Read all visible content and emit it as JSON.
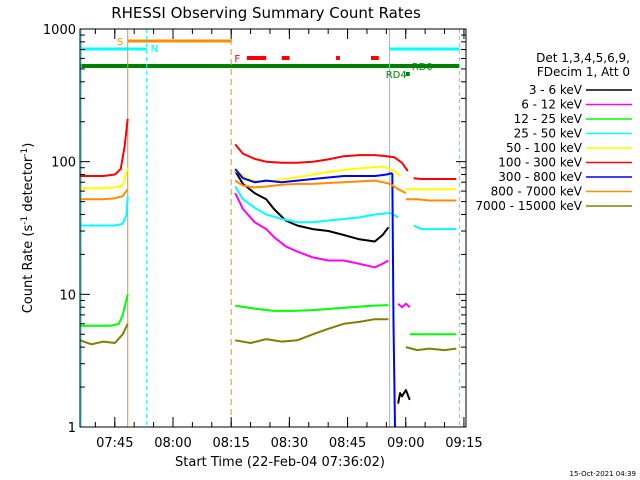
{
  "chart_data": {
    "type": "line",
    "title": "RHESSI Observing Summary Count Rates",
    "xlabel": "Start Time (22-Feb-04 07:36:02)",
    "ylabel_main": "Count Rate (s",
    "ylabel_sup1": "-1",
    "ylabel_mid": " detector",
    "ylabel_sup2": "-1",
    "ylabel_end": ")",
    "yscale": "log",
    "ylim": [
      1,
      1000
    ],
    "xlim_minutes": [
      0,
      99.5
    ],
    "y_ticks": [
      {
        "value": 1,
        "label": "1"
      },
      {
        "value": 10,
        "label": "10"
      },
      {
        "value": 100,
        "label": "100"
      },
      {
        "value": 1000,
        "label": "1000"
      }
    ],
    "x_ticks": [
      {
        "minute": 8.97,
        "label": "07:45"
      },
      {
        "minute": 23.97,
        "label": "08:00"
      },
      {
        "minute": 38.97,
        "label": "08:15"
      },
      {
        "minute": 53.97,
        "label": "08:30"
      },
      {
        "minute": 68.97,
        "label": "08:45"
      },
      {
        "minute": 83.97,
        "label": "09:00"
      },
      {
        "minute": 98.97,
        "label": "09:15"
      }
    ],
    "legend_header": [
      "Det 1,3,4,5,6,9,",
      "FDecim 1, Att 0"
    ],
    "legend": [
      {
        "label": "3 - 6 keV",
        "color": "#000000"
      },
      {
        "label": "6 - 12 keV",
        "color": "#ff00ff"
      },
      {
        "label": "12 - 25 keV",
        "color": "#00ff00"
      },
      {
        "label": "25 - 50 keV",
        "color": "#00ffff"
      },
      {
        "label": "50 - 100 keV",
        "color": "#ffff00"
      },
      {
        "label": "100 - 300 keV",
        "color": "#ff0000"
      },
      {
        "label": "300 - 800 keV",
        "color": "#0000ff"
      },
      {
        "label": "800 - 7000 keV",
        "color": "#ff8c00"
      },
      {
        "label": "7000 - 15000 keV",
        "color": "#808000"
      }
    ],
    "flag_labels": {
      "s": "S",
      "n": "N",
      "f": "F",
      "rd0": "RD0",
      "rd4": "RD4"
    },
    "footer_date": "15-Oct-2021 04:39",
    "series": [
      {
        "name": "3 - 6 keV",
        "color": "#000000",
        "segments": [
          {
            "x": [
              82,
              82.5,
              83,
              84,
              85
            ],
            "y": [
              1.5,
              1.8,
              1.7,
              1.9,
              1.6
            ]
          },
          {
            "x": [
              40,
              42,
              45,
              48,
              50,
              53,
              56,
              60,
              64,
              68,
              72,
              76,
              78,
              79.5
            ],
            "y": [
              85,
              68,
              58,
              52,
              44,
              36,
              33,
              31,
              30,
              28,
              26,
              25,
              28,
              32
            ]
          }
        ]
      },
      {
        "name": "6 - 12 keV",
        "color": "#ff00ff",
        "segments": [
          {
            "x": [
              40,
              42,
              45,
              48,
              50,
              53,
              56,
              60,
              64,
              68,
              72,
              76,
              78,
              79.5
            ],
            "y": [
              58,
              44,
              35,
              31,
              27,
              23,
              21,
              19,
              18,
              18,
              17,
              16,
              17,
              18
            ]
          },
          {
            "x": [
              82,
              83,
              84,
              85
            ],
            "y": [
              8.5,
              8,
              8.5,
              8
            ]
          }
        ]
      },
      {
        "name": "12 - 25 keV",
        "color": "#00ff00",
        "segments": [
          {
            "x": [
              0,
              4,
              8,
              10,
              11,
              12.3
            ],
            "y": [
              5.8,
              5.8,
              5.8,
              6,
              7,
              10
            ]
          },
          {
            "x": [
              40,
              45,
              50,
              55,
              60,
              65,
              70,
              75,
              79.5
            ],
            "y": [
              8.2,
              7.8,
              7.5,
              7.5,
              7.6,
              7.8,
              8,
              8.2,
              8.3
            ]
          },
          {
            "x": [
              85,
              88,
              91,
              94,
              97
            ],
            "y": [
              5,
              5,
              5,
              5,
              5
            ]
          }
        ]
      },
      {
        "name": "25 - 50 keV",
        "color": "#00ffff",
        "segments": [
          {
            "x": [
              0,
              3,
              6,
              9,
              11,
              12,
              12.3
            ],
            "y": [
              33,
              33,
              33,
              33,
              34,
              40,
              55
            ]
          },
          {
            "x": [
              40,
              42,
              45,
              48,
              52,
              56,
              60,
              64,
              68,
              72,
              76,
              80,
              82
            ],
            "y": [
              65,
              52,
              45,
              40,
              37,
              35,
              35,
              36,
              37,
              38,
              40,
              41,
              38
            ]
          },
          {
            "x": [
              86,
              88,
              91,
              94,
              97
            ],
            "y": [
              33,
              31,
              31,
              31,
              31
            ]
          }
        ]
      },
      {
        "name": "50 - 100 keV",
        "color": "#ffff00",
        "segments": [
          {
            "x": [
              0,
              3,
              6,
              9,
              11,
              12.3
            ],
            "y": [
              63,
              63,
              63,
              64,
              66,
              90
            ]
          },
          {
            "x": [
              40,
              43,
              46,
              50,
              54,
              58,
              62,
              66,
              70,
              74,
              78,
              81,
              82.5
            ],
            "y": [
              85,
              75,
              70,
              72,
              75,
              78,
              82,
              85,
              88,
              90,
              92,
              85,
              78
            ]
          },
          {
            "x": [
              84,
              87,
              90,
              94,
              97
            ],
            "y": [
              62,
              62,
              62,
              62,
              62
            ]
          }
        ]
      },
      {
        "name": "100 - 300 keV",
        "color": "#ff0000",
        "segments": [
          {
            "x": [
              0,
              3,
              6,
              9,
              10.5,
              11.5,
              12.3
            ],
            "y": [
              78,
              78,
              78,
              80,
              88,
              130,
              210
            ]
          },
          {
            "x": [
              40,
              42,
              45,
              48,
              52,
              56,
              60,
              64,
              68,
              72,
              76,
              79,
              81,
              83,
              84.5
            ],
            "y": [
              135,
              115,
              105,
              100,
              98,
              98,
              100,
              104,
              110,
              112,
              112,
              110,
              108,
              98,
              85
            ]
          },
          {
            "x": [
              86,
              88,
              91,
              94,
              97
            ],
            "y": [
              75,
              74,
              74,
              74,
              74
            ]
          }
        ]
      },
      {
        "name": "300 - 800 keV",
        "color": "#0000ff",
        "segments": [
          {
            "x": [
              40,
              42,
              45,
              48,
              52,
              56,
              60,
              64,
              68,
              72,
              76,
              79,
              80.5
            ],
            "y": [
              88,
              75,
              70,
              72,
              70,
              72,
              74,
              76,
              78,
              78,
              78,
              80,
              82
            ]
          },
          {
            "x": [
              80.5,
              80.8,
              81.2
            ],
            "y": [
              82,
              6,
              1
            ]
          }
        ]
      },
      {
        "name": "800 - 7000 keV",
        "color": "#ff8c00",
        "segments": [
          {
            "x": [
              0,
              3,
              6,
              9,
              11,
              12.3
            ],
            "y": [
              52,
              52,
              52,
              53,
              55,
              62
            ]
          },
          {
            "x": [
              40,
              42,
              45,
              48,
              52,
              56,
              60,
              64,
              68,
              72,
              76,
              80,
              82,
              84
            ],
            "y": [
              72,
              66,
              64,
              65,
              67,
              68,
              68,
              69,
              70,
              71,
              72,
              68,
              62,
              58
            ]
          },
          {
            "x": [
              84,
              87,
              90,
              94,
              97
            ],
            "y": [
              52,
              52,
              51,
              51,
              51
            ]
          }
        ]
      },
      {
        "name": "7000 - 15000 keV",
        "color": "#808000",
        "segments": [
          {
            "x": [
              0,
              3,
              6,
              9,
              11,
              12.3
            ],
            "y": [
              4.5,
              4.2,
              4.4,
              4.3,
              5,
              6
            ]
          },
          {
            "x": [
              40,
              44,
              48,
              52,
              56,
              60,
              64,
              68,
              72,
              76,
              79.5
            ],
            "y": [
              4.5,
              4.3,
              4.6,
              4.4,
              4.5,
              5,
              5.5,
              6,
              6.2,
              6.5,
              6.5
            ]
          },
          {
            "x": [
              84,
              87,
              90,
              94,
              97
            ],
            "y": [
              4,
              3.8,
              3.9,
              3.8,
              3.9
            ]
          }
        ]
      }
    ]
  }
}
